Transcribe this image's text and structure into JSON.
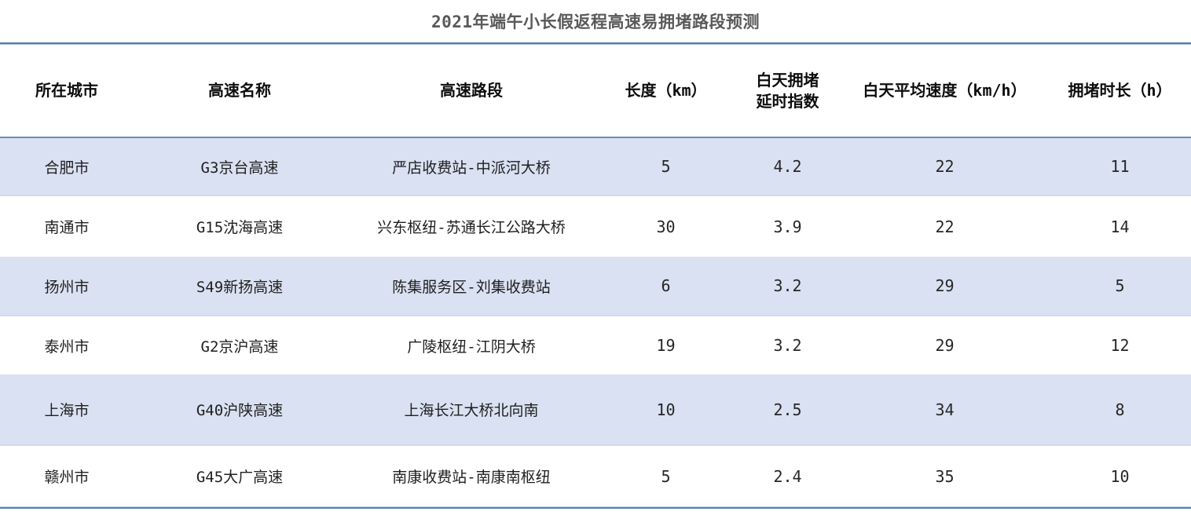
{
  "title": "2021年端午小长假返程高速易拥堵路段预测",
  "colors": {
    "accent_line": "#567eb4",
    "header_underline": "#6d8cb8",
    "stripe_row_background": "#d9e1f2",
    "title_text": "#595959"
  },
  "table": {
    "headers": [
      "所在城市",
      "高速名称",
      "高速路段",
      "长度（km）",
      "白天拥堵延时指数",
      "白天平均速度（km/h）",
      "拥堵时长（h）"
    ],
    "rows": [
      [
        "合肥市",
        "G3京台高速",
        "严店收费站-中派河大桥",
        "5",
        "4.2",
        "22",
        "11"
      ],
      [
        "南通市",
        "G15沈海高速",
        "兴东枢纽-苏通长江公路大桥",
        "30",
        "3.9",
        "22",
        "14"
      ],
      [
        "扬州市",
        "S49新扬高速",
        "陈集服务区-刘集收费站",
        "6",
        "3.2",
        "29",
        "5"
      ],
      [
        "泰州市",
        "G2京沪高速",
        "广陵枢纽-江阴大桥",
        "19",
        "3.2",
        "29",
        "12"
      ],
      [
        "上海市",
        "G40沪陕高速",
        "上海长江大桥北向南",
        "10",
        "2.5",
        "34",
        "8"
      ],
      [
        "赣州市",
        "G45大广高速",
        "南康收费站-南康南枢纽",
        "5",
        "2.4",
        "35",
        "10"
      ]
    ]
  }
}
